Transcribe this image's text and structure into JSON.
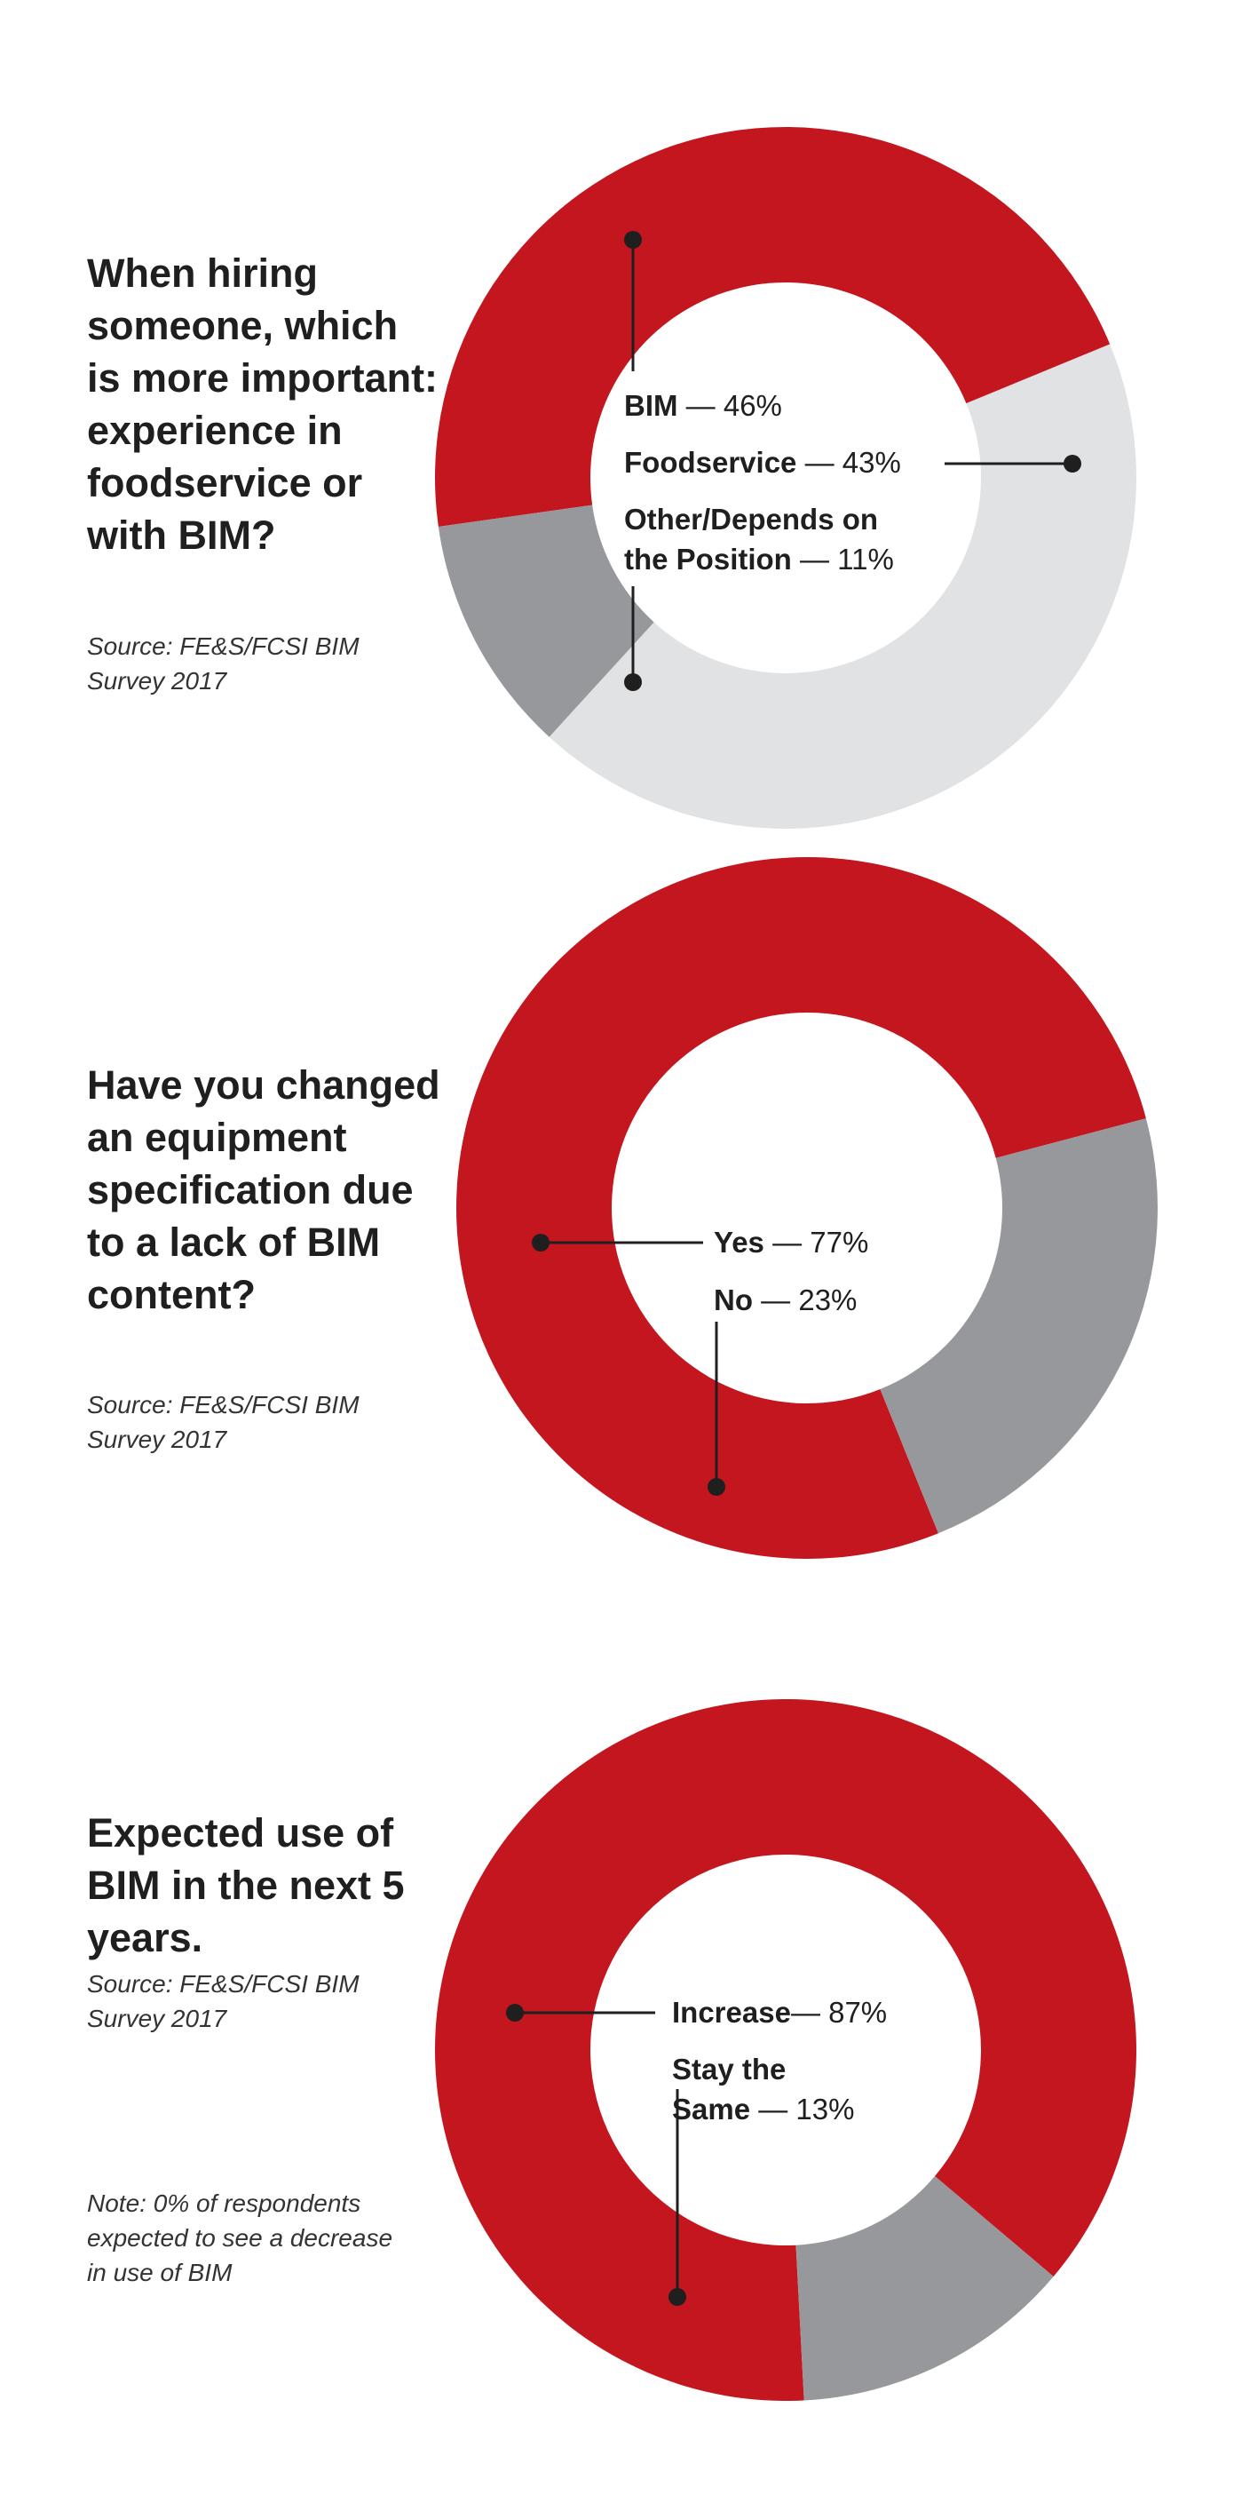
{
  "panels": [
    {
      "question": "When hiring someone, which is more important: experience in foodservice or with BIM?",
      "source": "Source: FE&S/FCSI BIM Survey 2017"
    },
    {
      "question": "Have you changed an equipment specification due to a lack of BIM content?",
      "source": "Source: FE&S/FCSI BIM Survey 2017"
    },
    {
      "question": "Expected use of BIM in the next 5 years.",
      "source": "Source: FE&S/FCSI BIM Survey 2017",
      "note": "Note: 0% of respondents expected to see a decrease in use of BIM"
    }
  ],
  "colors": {
    "red": "#c4161e",
    "gray": "#97989b",
    "light_gray": "#e1e2e3",
    "leader": "#1f1f1f"
  },
  "chart_data": [
    {
      "type": "pie",
      "title": "When hiring someone, which is more important: experience in foodservice or with BIM?",
      "categories": [
        "BIM",
        "Foodservice",
        "Other/Depends on the Position"
      ],
      "values": [
        46,
        43,
        11
      ],
      "labels": [
        "BIM — 46%",
        "Foodservice — 43%",
        "Other/Depends on the Position — 11%"
      ],
      "colors": [
        "#c4161e",
        "#e1e2e3",
        "#97989b"
      ],
      "unit": "%"
    },
    {
      "type": "pie",
      "title": "Have you changed an equipment specification due to a lack of BIM content?",
      "categories": [
        "Yes",
        "No"
      ],
      "values": [
        77,
        23
      ],
      "labels": [
        "Yes — 77%",
        "No — 23%"
      ],
      "colors": [
        "#c4161e",
        "#97989b"
      ],
      "unit": "%"
    },
    {
      "type": "pie",
      "title": "Expected use of BIM in the next 5 years.",
      "categories": [
        "Increase",
        "Stay the Same"
      ],
      "values": [
        87,
        13
      ],
      "labels": [
        "Increase— 87%",
        "Stay the Same — 13%"
      ],
      "colors": [
        "#c4161e",
        "#97989b"
      ],
      "unit": "%"
    }
  ]
}
